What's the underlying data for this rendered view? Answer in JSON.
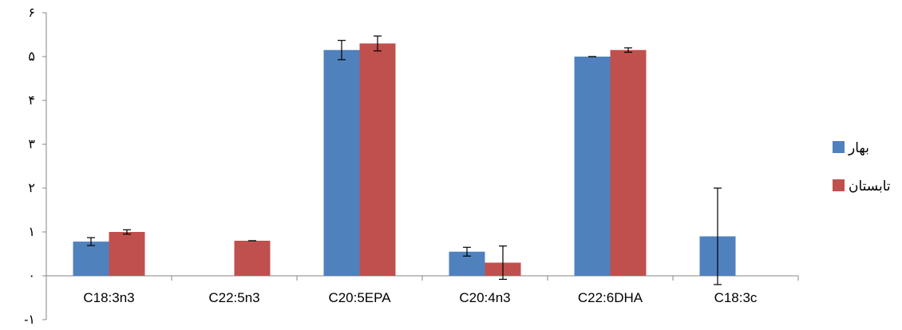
{
  "chart_data": {
    "type": "bar",
    "title": "",
    "xlabel": "",
    "ylabel": "",
    "categories": [
      "C18:3n3",
      "C22:5n3",
      "C20:5EPA",
      "C20:4n3",
      "C22:6DHA",
      "C18:3c"
    ],
    "series": [
      {
        "name": "بهار",
        "color": "#4F81BD",
        "values": [
          0.78,
          null,
          5.15,
          0.55,
          5.0,
          0.9
        ],
        "errors": [
          0.09,
          null,
          0.22,
          0.1,
          0.0,
          1.1
        ]
      },
      {
        "name": "تابستان",
        "color": "#C0504D",
        "values": [
          1.0,
          0.8,
          5.3,
          0.3,
          5.15,
          null
        ],
        "errors": [
          0.05,
          0.0,
          0.17,
          0.38,
          0.05,
          null
        ]
      }
    ],
    "ylim": [
      -1,
      6
    ],
    "yticks": [
      {
        "value": -1,
        "label": "-۱"
      },
      {
        "value": 0,
        "label": "۰"
      },
      {
        "value": 1,
        "label": "۱"
      },
      {
        "value": 2,
        "label": "۲"
      },
      {
        "value": 3,
        "label": "۳"
      },
      {
        "value": 4,
        "label": "۴"
      },
      {
        "value": 5,
        "label": "۵"
      },
      {
        "value": 6,
        "label": "۶"
      }
    ],
    "grid": false,
    "legend": "right"
  }
}
